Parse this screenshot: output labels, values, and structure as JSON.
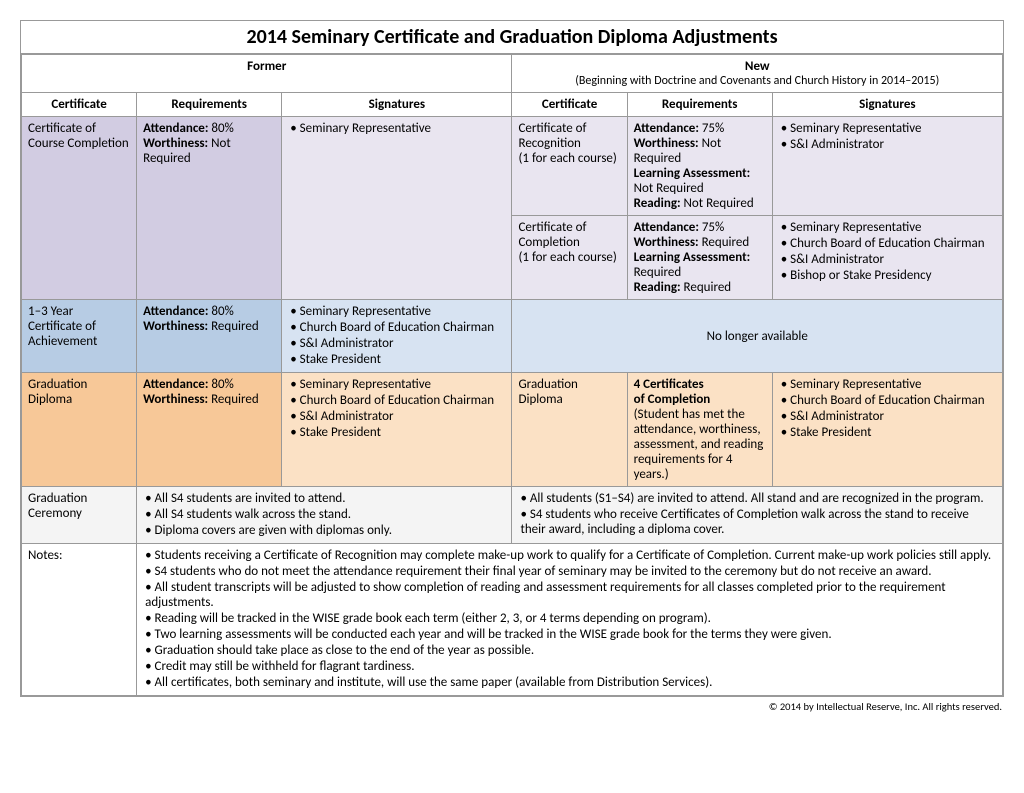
{
  "title": "2014 Seminary Certificate and Graduation Diploma Adjustments",
  "groupHeaders": {
    "former": "Former",
    "new": "New",
    "newSub": "(Beginning with Doctrine and Covenants and Church History in 2014–2015)"
  },
  "colHeaders": {
    "cert": "Certificate",
    "req": "Requirements",
    "sig": "Signatures"
  },
  "rows": {
    "courseCompletion": {
      "former": {
        "cert": "Certificate of Course Completion",
        "req": {
          "attLabel": "Attendance:",
          "attVal": " 80%",
          "worLabel": "Worthiness:",
          "worVal": " Not Required"
        },
        "sigs": [
          "Seminary Representative"
        ]
      },
      "newA": {
        "cert": "Certificate of Recognition",
        "certSub": "(1 for each course)",
        "req": {
          "attLabel": "Attendance:",
          "attVal": " 75%",
          "worLabel": "Worthiness:",
          "worVal": " Not Required",
          "laLabel": "Learning Assessment:",
          "laVal": " Not Required",
          "rdLabel": "Reading:",
          "rdVal": " Not Required"
        },
        "sigs": [
          "Seminary Representative",
          "S&I Administrator"
        ]
      },
      "newB": {
        "cert": "Certificate of Completion",
        "certSub": "(1 for each course)",
        "req": {
          "attLabel": "Attendance:",
          "attVal": " 75%",
          "worLabel": "Worthiness:",
          "worVal": " Required",
          "laLabel": "Learning Assessment:",
          "laVal": " Required",
          "rdLabel": "Reading:",
          "rdVal": " Required"
        },
        "sigs": [
          "Seminary Representative",
          "Church Board of Education Chairman",
          "S&I Administrator",
          "Bishop or Stake Presidency"
        ]
      }
    },
    "achievement": {
      "former": {
        "cert": "1–3 Year Certificate of Achievement",
        "req": {
          "attLabel": "Attendance:",
          "attVal": " 80%",
          "worLabel": "Worthiness:",
          "worVal": " Required"
        },
        "sigs": [
          "Seminary Representative",
          "Church Board of Education Chairman",
          "S&I Administrator",
          "Stake President"
        ]
      },
      "newMsg": "No longer available"
    },
    "diploma": {
      "former": {
        "cert": "Graduation Diploma",
        "req": {
          "attLabel": "Attendance:",
          "attVal": " 80%",
          "worLabel": "Worthiness:",
          "worVal": " Required"
        },
        "sigs": [
          "Seminary Representative",
          "Church Board of Education Chairman",
          "S&I Administrator",
          "Stake President"
        ]
      },
      "new": {
        "cert": "Graduation Diploma",
        "reqTitle1": "4 Certificates",
        "reqTitle2": "of Completion",
        "reqNote": "(Student has met the attendance, worthiness, assessment, and reading requirements for 4 years.)",
        "sigs": [
          "Seminary Representative",
          "Church Board of Education Chairman",
          "S&I Administrator",
          "Stake President"
        ]
      }
    },
    "ceremony": {
      "label": "Graduation Ceremony",
      "former": [
        "All S4 students are invited to attend.",
        "All S4 students walk across the stand.",
        "Diploma covers are given with diplomas only."
      ],
      "new": [
        "All students (S1–S4) are invited to attend. All stand and are recognized in the program.",
        "S4 students who receive Certificates of Completion walk across the stand to receive their award, including a diploma cover."
      ]
    },
    "notes": {
      "label": "Notes:",
      "items": [
        "Students receiving a Certificate of Recognition may complete make-up work to qualify for a Certificate of Completion. Current make-up work policies still apply.",
        "S4 students who do not meet the attendance requirement their final year of seminary may be invited to the ceremony but do not receive an award.",
        "All student transcripts will be adjusted to show completion of reading and assessment requirements for all classes completed prior to the requirement adjustments.",
        "Reading will be tracked in the WISE grade book each term (either 2, 3, or 4 terms depending on program).",
        "Two learning assessments will be conducted each year and will be tracked in the WISE grade book for the terms they were given.",
        "Graduation should take place as close to the end of the year as possible.",
        "Credit may still be withheld for flagrant tardiness.",
        "All certificates, both seminary and institute, will use the same paper (available from Distribution Services)."
      ]
    }
  },
  "footer": "© 2014 by Intellectual Reserve, Inc. All rights reserved."
}
